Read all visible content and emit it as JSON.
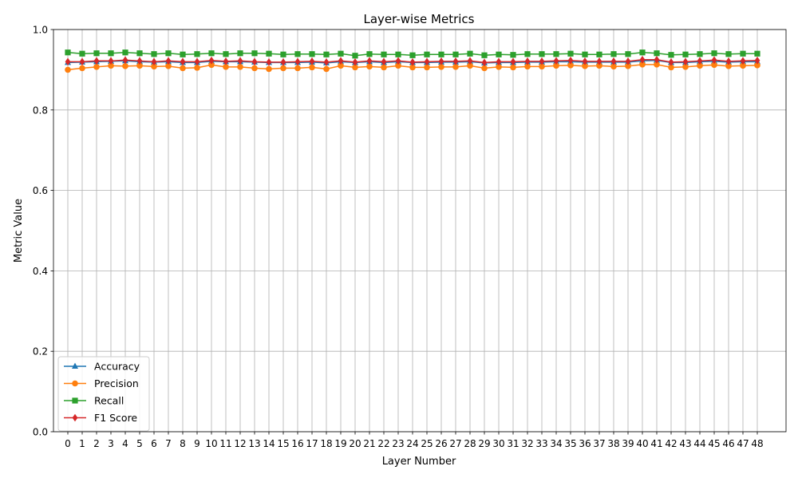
{
  "chart_data": {
    "type": "line",
    "title": "Layer-wise Metrics",
    "xlabel": "Layer Number",
    "ylabel": "Metric Value",
    "ylim": [
      0.0,
      1.0
    ],
    "xlim": [
      -1.0,
      50.0
    ],
    "grid": true,
    "legend_position": "lower-left",
    "x": [
      0,
      1,
      2,
      3,
      4,
      5,
      6,
      7,
      8,
      9,
      10,
      11,
      12,
      13,
      14,
      15,
      16,
      17,
      18,
      19,
      20,
      21,
      22,
      23,
      24,
      25,
      26,
      27,
      28,
      29,
      30,
      31,
      32,
      33,
      34,
      35,
      36,
      37,
      38,
      39,
      40,
      41,
      42,
      43,
      44,
      45,
      46,
      47,
      48
    ],
    "y_ticks": [
      "0.0",
      "0.2",
      "0.4",
      "0.6",
      "0.8",
      "1.0"
    ],
    "series": [
      {
        "name": "Accuracy",
        "color": "#1f77b4",
        "marker": "triangle",
        "values": [
          0.918,
          0.919,
          0.92,
          0.921,
          0.922,
          0.92,
          0.919,
          0.92,
          0.918,
          0.918,
          0.921,
          0.92,
          0.92,
          0.919,
          0.918,
          0.918,
          0.918,
          0.919,
          0.917,
          0.92,
          0.918,
          0.92,
          0.918,
          0.92,
          0.918,
          0.918,
          0.919,
          0.919,
          0.92,
          0.917,
          0.918,
          0.918,
          0.919,
          0.919,
          0.92,
          0.92,
          0.919,
          0.919,
          0.919,
          0.919,
          0.922,
          0.923,
          0.918,
          0.918,
          0.92,
          0.921,
          0.919,
          0.92,
          0.92
        ]
      },
      {
        "name": "Precision",
        "color": "#ff7f0e",
        "marker": "circle",
        "values": [
          0.9,
          0.904,
          0.907,
          0.91,
          0.909,
          0.91,
          0.908,
          0.909,
          0.904,
          0.905,
          0.912,
          0.907,
          0.907,
          0.904,
          0.902,
          0.904,
          0.904,
          0.906,
          0.902,
          0.91,
          0.906,
          0.908,
          0.906,
          0.91,
          0.906,
          0.906,
          0.907,
          0.907,
          0.91,
          0.904,
          0.907,
          0.906,
          0.908,
          0.908,
          0.91,
          0.911,
          0.909,
          0.91,
          0.908,
          0.909,
          0.913,
          0.913,
          0.906,
          0.907,
          0.91,
          0.912,
          0.909,
          0.91,
          0.911
        ]
      },
      {
        "name": "Recall",
        "color": "#2ca02c",
        "marker": "square",
        "values": [
          0.943,
          0.94,
          0.941,
          0.941,
          0.943,
          0.941,
          0.939,
          0.941,
          0.938,
          0.939,
          0.941,
          0.939,
          0.941,
          0.941,
          0.94,
          0.938,
          0.939,
          0.939,
          0.938,
          0.94,
          0.935,
          0.939,
          0.938,
          0.938,
          0.936,
          0.938,
          0.938,
          0.938,
          0.94,
          0.936,
          0.938,
          0.937,
          0.939,
          0.939,
          0.939,
          0.94,
          0.938,
          0.938,
          0.939,
          0.939,
          0.943,
          0.941,
          0.937,
          0.938,
          0.939,
          0.941,
          0.939,
          0.94,
          0.94
        ]
      },
      {
        "name": "F1 Score",
        "color": "#d62728",
        "marker": "diamond",
        "values": [
          0.92,
          0.92,
          0.922,
          0.922,
          0.924,
          0.922,
          0.92,
          0.922,
          0.92,
          0.92,
          0.923,
          0.921,
          0.922,
          0.92,
          0.919,
          0.919,
          0.92,
          0.921,
          0.919,
          0.922,
          0.919,
          0.922,
          0.92,
          0.922,
          0.919,
          0.92,
          0.921,
          0.921,
          0.922,
          0.918,
          0.92,
          0.92,
          0.921,
          0.921,
          0.922,
          0.923,
          0.921,
          0.921,
          0.921,
          0.921,
          0.925,
          0.925,
          0.919,
          0.92,
          0.922,
          0.924,
          0.921,
          0.922,
          0.923
        ]
      }
    ]
  }
}
